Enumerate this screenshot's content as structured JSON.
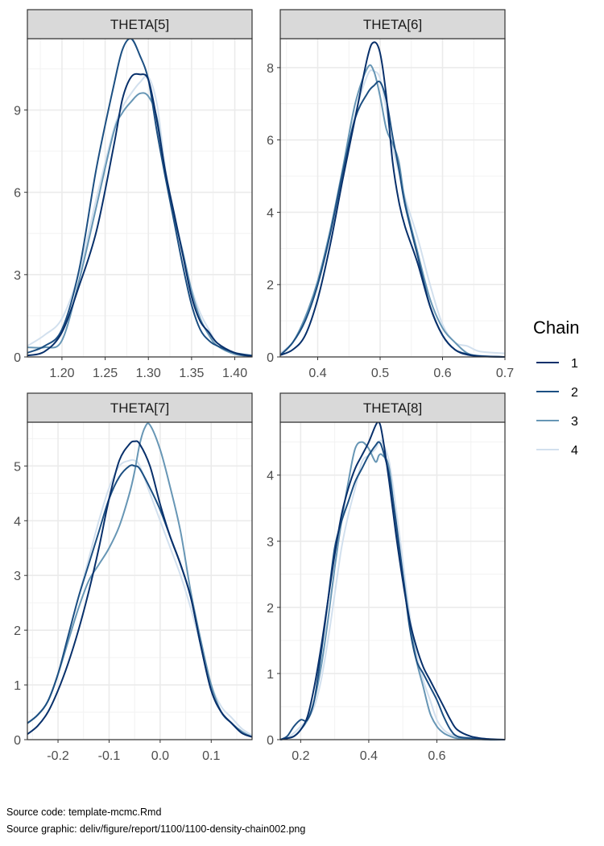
{
  "chart_data": {
    "type": "line",
    "kind": "density-facets",
    "grid": true,
    "legend_position": "right",
    "legend": {
      "title": "Chain",
      "entries": [
        {
          "label": "1",
          "color": "#08306b"
        },
        {
          "label": "2",
          "color": "#1c4f82"
        },
        {
          "label": "3",
          "color": "#6796b5"
        },
        {
          "label": "4",
          "color": "#d2e0ee"
        }
      ]
    },
    "panels": [
      {
        "title": "THETA[5]",
        "xlim": [
          1.16,
          1.42
        ],
        "ylim": [
          0,
          11.6
        ],
        "xticks": [
          1.2,
          1.25,
          1.3,
          1.35,
          1.4
        ],
        "xtick_labels": [
          "1.20",
          "1.25",
          "1.30",
          "1.35",
          "1.40"
        ],
        "yticks": [
          0,
          3,
          6,
          9
        ],
        "ytick_labels": [
          "0",
          "3",
          "6",
          "9"
        ],
        "series": [
          {
            "x": [
              1.16,
              1.18,
              1.2,
              1.22,
              1.24,
              1.26,
              1.27,
              1.28,
              1.29,
              1.3,
              1.31,
              1.32,
              1.33,
              1.34,
              1.35,
              1.36,
              1.37,
              1.38,
              1.4,
              1.42
            ],
            "y": [
              0.05,
              0.2,
              0.9,
              2.6,
              4.6,
              7.7,
              9.4,
              10.2,
              10.3,
              10.1,
              8.6,
              6.7,
              5.2,
              3.7,
              2.2,
              1.3,
              0.9,
              0.5,
              0.15,
              0.02
            ]
          },
          {
            "x": [
              1.16,
              1.18,
              1.2,
              1.22,
              1.24,
              1.26,
              1.27,
              1.28,
              1.29,
              1.3,
              1.31,
              1.32,
              1.33,
              1.34,
              1.35,
              1.36,
              1.37,
              1.38,
              1.4,
              1.42
            ],
            "y": [
              0.15,
              0.4,
              1.0,
              3.2,
              6.9,
              9.9,
              11.2,
              11.6,
              11.0,
              10.1,
              8.2,
              6.5,
              4.9,
              3.3,
              1.9,
              1.0,
              0.6,
              0.4,
              0.15,
              0.05
            ]
          },
          {
            "x": [
              1.16,
              1.18,
              1.2,
              1.22,
              1.24,
              1.26,
              1.27,
              1.28,
              1.29,
              1.3,
              1.31,
              1.32,
              1.33,
              1.34,
              1.35,
              1.36,
              1.37,
              1.38,
              1.4,
              1.42
            ],
            "y": [
              0.35,
              0.35,
              0.6,
              2.8,
              5.5,
              8.2,
              8.9,
              9.3,
              9.6,
              9.5,
              8.7,
              6.6,
              5.1,
              3.8,
              2.4,
              1.4,
              0.8,
              0.4,
              0.1,
              0.02
            ]
          },
          {
            "x": [
              1.16,
              1.18,
              1.2,
              1.22,
              1.24,
              1.26,
              1.27,
              1.28,
              1.29,
              1.3,
              1.31,
              1.32,
              1.33,
              1.34,
              1.35,
              1.36,
              1.37,
              1.38,
              1.4,
              1.42
            ],
            "y": [
              0.4,
              0.8,
              1.4,
              3.1,
              5.8,
              8.3,
              9.1,
              9.6,
              10.0,
              10.2,
              9.2,
              6.8,
              5.2,
              3.8,
              2.5,
              1.6,
              1.0,
              0.5,
              0.15,
              0.05
            ]
          }
        ]
      },
      {
        "title": "THETA[6]",
        "xlim": [
          0.34,
          0.7
        ],
        "ylim": [
          0,
          8.8
        ],
        "xticks": [
          0.4,
          0.5,
          0.6,
          0.7
        ],
        "xtick_labels": [
          "0.4",
          "0.5",
          "0.6",
          "0.7"
        ],
        "yticks": [
          0,
          2,
          4,
          6,
          8
        ],
        "ytick_labels": [
          "0",
          "2",
          "4",
          "6",
          "8"
        ],
        "series": [
          {
            "x": [
              0.34,
              0.36,
              0.38,
              0.4,
              0.42,
              0.44,
              0.46,
              0.48,
              0.49,
              0.5,
              0.51,
              0.52,
              0.53,
              0.54,
              0.56,
              0.58,
              0.6,
              0.62,
              0.64,
              0.66,
              0.7
            ],
            "y": [
              0.05,
              0.2,
              0.6,
              1.6,
              3.1,
              4.9,
              6.6,
              8.3,
              8.7,
              8.4,
              7.2,
              5.4,
              4.3,
              3.6,
              2.6,
              1.4,
              0.6,
              0.2,
              0.06,
              0.02,
              0.0
            ]
          },
          {
            "x": [
              0.34,
              0.36,
              0.38,
              0.4,
              0.42,
              0.44,
              0.46,
              0.48,
              0.49,
              0.5,
              0.51,
              0.52,
              0.53,
              0.54,
              0.56,
              0.58,
              0.6,
              0.62,
              0.64,
              0.66,
              0.7
            ],
            "y": [
              0.05,
              0.4,
              1.0,
              2.0,
              3.4,
              5.1,
              6.6,
              7.3,
              7.5,
              7.6,
              7.1,
              6.1,
              5.2,
              4.2,
              2.8,
              1.4,
              0.6,
              0.2,
              0.08,
              0.02,
              0.0
            ]
          },
          {
            "x": [
              0.34,
              0.36,
              0.38,
              0.4,
              0.42,
              0.44,
              0.46,
              0.48,
              0.49,
              0.5,
              0.51,
              0.52,
              0.53,
              0.54,
              0.56,
              0.58,
              0.6,
              0.62,
              0.64,
              0.66,
              0.7
            ],
            "y": [
              0.05,
              0.4,
              1.1,
              2.1,
              3.5,
              5.2,
              7.0,
              8.0,
              7.9,
              7.2,
              6.3,
              5.9,
              5.4,
              4.3,
              2.9,
              1.6,
              0.8,
              0.4,
              0.1,
              0.03,
              0.0
            ]
          },
          {
            "x": [
              0.34,
              0.36,
              0.38,
              0.4,
              0.42,
              0.44,
              0.46,
              0.48,
              0.49,
              0.5,
              0.51,
              0.52,
              0.53,
              0.54,
              0.56,
              0.58,
              0.6,
              0.62,
              0.64,
              0.66,
              0.7
            ],
            "y": [
              0.1,
              0.4,
              1.0,
              2.0,
              3.4,
              5.1,
              6.7,
              7.8,
              7.9,
              7.7,
              6.8,
              5.8,
              5.1,
              4.4,
              3.3,
              2.0,
              0.9,
              0.4,
              0.3,
              0.15,
              0.1
            ]
          }
        ]
      },
      {
        "title": "THETA[7]",
        "xlim": [
          -0.26,
          0.18
        ],
        "ylim": [
          0,
          5.8
        ],
        "xticks": [
          -0.2,
          -0.1,
          0.0,
          0.1
        ],
        "xtick_labels": [
          "-0.2",
          "-0.1",
          "0.0",
          "0.1"
        ],
        "yticks": [
          0,
          1,
          2,
          3,
          4,
          5
        ],
        "ytick_labels": [
          "0",
          "1",
          "2",
          "3",
          "4",
          "5"
        ],
        "series": [
          {
            "x": [
              -0.26,
              -0.24,
              -0.22,
              -0.2,
              -0.18,
              -0.16,
              -0.14,
              -0.12,
              -0.1,
              -0.08,
              -0.06,
              -0.05,
              -0.04,
              -0.02,
              0.0,
              0.02,
              0.04,
              0.06,
              0.08,
              0.1,
              0.12,
              0.14,
              0.16,
              0.18
            ],
            "y": [
              0.1,
              0.25,
              0.5,
              0.9,
              1.4,
              2.0,
              2.7,
              3.5,
              4.4,
              5.1,
              5.4,
              5.45,
              5.4,
              5.0,
              4.3,
              3.7,
              3.2,
              2.6,
              1.7,
              0.9,
              0.5,
              0.3,
              0.12,
              0.05
            ]
          },
          {
            "x": [
              -0.26,
              -0.24,
              -0.22,
              -0.2,
              -0.18,
              -0.16,
              -0.14,
              -0.12,
              -0.1,
              -0.08,
              -0.06,
              -0.05,
              -0.04,
              -0.02,
              0.0,
              0.02,
              0.04,
              0.06,
              0.08,
              0.1,
              0.12,
              0.14,
              0.16,
              0.18
            ],
            "y": [
              0.3,
              0.45,
              0.7,
              1.2,
              1.9,
              2.6,
              3.2,
              3.8,
              4.4,
              4.8,
              5.0,
              5.0,
              4.95,
              4.6,
              4.2,
              3.7,
              3.2,
              2.6,
              1.7,
              0.9,
              0.5,
              0.3,
              0.12,
              0.05
            ]
          },
          {
            "x": [
              -0.26,
              -0.24,
              -0.22,
              -0.2,
              -0.18,
              -0.16,
              -0.14,
              -0.12,
              -0.1,
              -0.08,
              -0.06,
              -0.05,
              -0.04,
              -0.03,
              -0.02,
              0.0,
              0.02,
              0.04,
              0.06,
              0.08,
              0.1,
              0.12,
              0.14,
              0.16,
              0.18
            ],
            "y": [
              0.3,
              0.45,
              0.7,
              1.2,
              1.8,
              2.4,
              2.9,
              3.2,
              3.5,
              3.9,
              4.5,
              4.9,
              5.4,
              5.7,
              5.75,
              5.3,
              4.6,
              3.8,
              2.7,
              1.8,
              1.0,
              0.5,
              0.3,
              0.15,
              0.05
            ]
          },
          {
            "x": [
              -0.26,
              -0.24,
              -0.22,
              -0.2,
              -0.18,
              -0.16,
              -0.14,
              -0.12,
              -0.1,
              -0.08,
              -0.06,
              -0.05,
              -0.04,
              -0.02,
              0.0,
              0.02,
              0.04,
              0.06,
              0.08,
              0.1,
              0.12,
              0.14,
              0.16,
              0.18
            ],
            "y": [
              0.3,
              0.45,
              0.7,
              1.2,
              1.9,
              2.6,
              3.3,
              4.0,
              4.6,
              5.0,
              5.1,
              5.1,
              5.0,
              4.5,
              4.0,
              3.5,
              3.0,
              2.4,
              1.7,
              1.0,
              0.6,
              0.4,
              0.2,
              0.08
            ]
          }
        ]
      },
      {
        "title": "THETA[8]",
        "xlim": [
          0.14,
          0.8
        ],
        "ylim": [
          0,
          4.8
        ],
        "xticks": [
          0.2,
          0.4,
          0.6
        ],
        "xtick_labels": [
          "0.2",
          "0.4",
          "0.6"
        ],
        "yticks": [
          0,
          1,
          2,
          3,
          4
        ],
        "ytick_labels": [
          "0",
          "1",
          "2",
          "3",
          "4"
        ],
        "series": [
          {
            "x": [
              0.14,
              0.16,
              0.18,
              0.2,
              0.22,
              0.24,
              0.26,
              0.28,
              0.3,
              0.32,
              0.34,
              0.36,
              0.38,
              0.4,
              0.42,
              0.43,
              0.44,
              0.46,
              0.48,
              0.5,
              0.52,
              0.54,
              0.56,
              0.58,
              0.6,
              0.62,
              0.64,
              0.66,
              0.7,
              0.75,
              0.8
            ],
            "y": [
              0.0,
              0.02,
              0.05,
              0.15,
              0.35,
              0.8,
              1.4,
              2.1,
              2.8,
              3.4,
              3.8,
              4.1,
              4.3,
              4.5,
              4.75,
              4.8,
              4.6,
              3.9,
              3.1,
              2.4,
              1.8,
              1.4,
              1.1,
              0.9,
              0.7,
              0.5,
              0.3,
              0.15,
              0.05,
              0.01,
              0.0
            ]
          },
          {
            "x": [
              0.14,
              0.16,
              0.18,
              0.2,
              0.22,
              0.24,
              0.26,
              0.28,
              0.3,
              0.32,
              0.34,
              0.36,
              0.38,
              0.4,
              0.42,
              0.43,
              0.44,
              0.46,
              0.48,
              0.5,
              0.52,
              0.54,
              0.56,
              0.58,
              0.6,
              0.62,
              0.64,
              0.66,
              0.7,
              0.75,
              0.8
            ],
            "y": [
              0.0,
              0.05,
              0.2,
              0.3,
              0.3,
              0.6,
              1.3,
              2.1,
              2.9,
              3.3,
              3.6,
              3.9,
              4.1,
              4.3,
              4.45,
              4.5,
              4.4,
              4.0,
              3.3,
              2.5,
              1.7,
              1.2,
              1.0,
              0.8,
              0.6,
              0.35,
              0.15,
              0.05,
              0.02,
              0.0,
              0.0
            ]
          },
          {
            "x": [
              0.14,
              0.16,
              0.18,
              0.2,
              0.22,
              0.24,
              0.26,
              0.28,
              0.3,
              0.32,
              0.34,
              0.36,
              0.38,
              0.4,
              0.42,
              0.43,
              0.44,
              0.46,
              0.48,
              0.5,
              0.52,
              0.54,
              0.56,
              0.58,
              0.6,
              0.62,
              0.64,
              0.66,
              0.7,
              0.75,
              0.8
            ],
            "y": [
              0.0,
              0.02,
              0.05,
              0.15,
              0.3,
              0.6,
              1.1,
              1.8,
              2.6,
              3.3,
              3.9,
              4.4,
              4.5,
              4.4,
              4.2,
              4.3,
              4.3,
              4.1,
              3.2,
              2.5,
              1.8,
              1.2,
              0.8,
              0.4,
              0.2,
              0.1,
              0.05,
              0.02,
              0.01,
              0.0,
              0.0
            ]
          },
          {
            "x": [
              0.14,
              0.16,
              0.18,
              0.2,
              0.22,
              0.24,
              0.26,
              0.28,
              0.3,
              0.32,
              0.34,
              0.36,
              0.38,
              0.4,
              0.42,
              0.43,
              0.44,
              0.46,
              0.48,
              0.5,
              0.52,
              0.54,
              0.56,
              0.58,
              0.6,
              0.62,
              0.64,
              0.66,
              0.7,
              0.75,
              0.8
            ],
            "y": [
              0.0,
              0.03,
              0.1,
              0.2,
              0.3,
              0.5,
              0.9,
              1.5,
              2.2,
              2.9,
              3.4,
              3.8,
              4.2,
              4.3,
              4.4,
              4.5,
              4.5,
              4.2,
              3.5,
              2.7,
              1.9,
              1.3,
              0.9,
              0.6,
              0.3,
              0.15,
              0.08,
              0.05,
              0.03,
              0.01,
              0.0
            ]
          }
        ]
      }
    ]
  },
  "captions": {
    "source_code": "Source code: template-mcmc.Rmd",
    "source_graphic": "Source graphic: deliv/figure/report/1100/1100-density-chain002.png"
  }
}
